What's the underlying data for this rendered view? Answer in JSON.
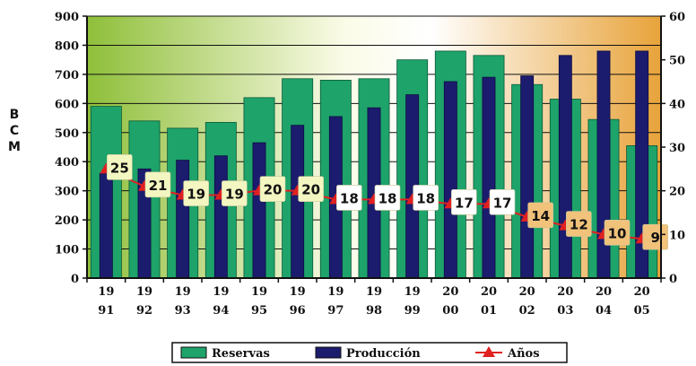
{
  "chart_data": {
    "type": "bar",
    "categories": [
      [
        "19",
        "91"
      ],
      [
        "19",
        "92"
      ],
      [
        "19",
        "93"
      ],
      [
        "19",
        "94"
      ],
      [
        "19",
        "95"
      ],
      [
        "19",
        "96"
      ],
      [
        "19",
        "97"
      ],
      [
        "19",
        "98"
      ],
      [
        "19",
        "99"
      ],
      [
        "20",
        "00"
      ],
      [
        "20",
        "01"
      ],
      [
        "20",
        "02"
      ],
      [
        "20",
        "03"
      ],
      [
        "20",
        "04"
      ],
      [
        "20",
        "05"
      ]
    ],
    "ylabel": "BCM",
    "ylim": [
      0,
      900
    ],
    "y2lim": [
      0,
      60
    ],
    "yticks": [
      0,
      100,
      200,
      300,
      400,
      500,
      600,
      700,
      800,
      900
    ],
    "y2ticks": [
      0,
      10,
      20,
      30,
      40,
      50,
      60
    ],
    "legend_position": "bottom",
    "series": [
      {
        "name": "Reservas",
        "axis": "left",
        "kind": "bar",
        "color": "#1ea36a",
        "values": [
          590,
          540,
          515,
          535,
          620,
          685,
          680,
          685,
          750,
          780,
          765,
          665,
          615,
          545,
          455
        ]
      },
      {
        "name": "Producción",
        "axis": "left",
        "kind": "bar",
        "color": "#1c1c6e",
        "values": [
          360,
          375,
          405,
          420,
          465,
          525,
          555,
          585,
          630,
          675,
          690,
          695,
          765,
          780,
          780
        ]
      },
      {
        "name": "Años",
        "axis": "right",
        "kind": "line-marker",
        "color": "#e02020",
        "values": [
          25,
          21,
          19,
          19,
          20,
          20,
          18,
          18,
          18,
          17,
          17,
          14,
          12,
          10,
          9
        ]
      }
    ]
  }
}
